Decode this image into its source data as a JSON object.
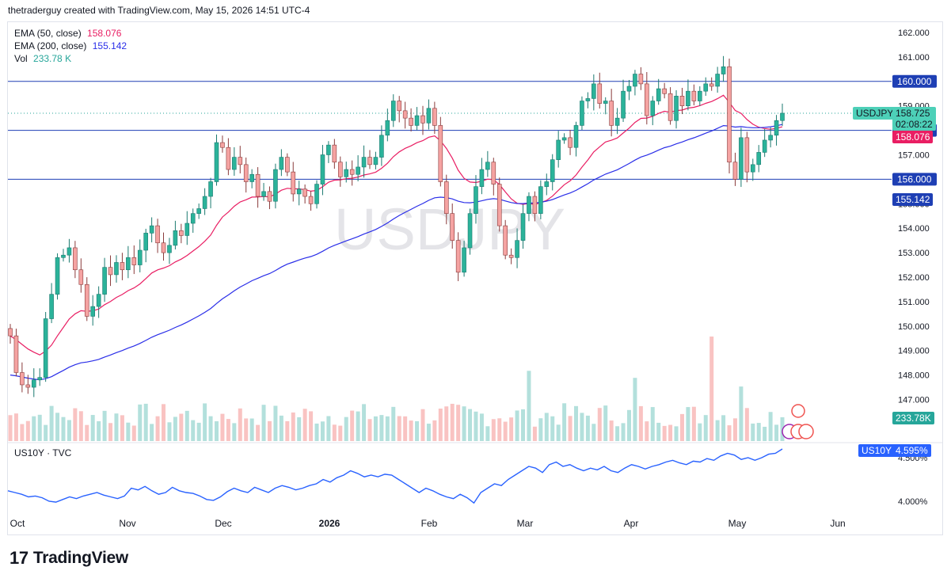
{
  "header": {
    "attribution": "thetraderguy created with TradingView.com, May 15, 2026 14:51 UTC-4"
  },
  "watermark": "USDJPY",
  "legend": {
    "ema50_label": "EMA (50, close)",
    "ema50_value": "158.076",
    "ema200_label": "EMA (200, close)",
    "ema200_value": "155.142",
    "vol_label": "Vol",
    "vol_value": "233.78 K"
  },
  "lower_legend": {
    "label": "US10Y · TVC"
  },
  "price_tags": {
    "symbol": "USDJPY",
    "last": "158.725",
    "countdown": "02:08:22",
    "ema50": "158.076",
    "ema200": "155.142",
    "vol": "233.78K",
    "us10y_symbol": "US10Y",
    "us10y_last": "4.595%"
  },
  "brand": {
    "name": "TradingView"
  },
  "colors": {
    "up": "#26a69a",
    "down": "#ef5350",
    "ema50": "#e91e63",
    "ema200": "#2a2ee8",
    "levels": "#1e3fb4",
    "us10y": "#2962ff"
  },
  "chart_data": [
    {
      "type": "candlestick",
      "symbol": "USDJPY",
      "y_range": [
        146.0,
        162.5
      ],
      "y_ticks": [
        "162.000",
        "161.000",
        "160.000",
        "159.000",
        "158.000",
        "157.000",
        "156.000",
        "155.000",
        "154.000",
        "153.000",
        "152.000",
        "151.000",
        "150.000",
        "149.000",
        "148.000",
        "147.000"
      ],
      "x_labels": [
        "Oct",
        "Nov",
        "Dec",
        "2026",
        "Feb",
        "Mar",
        "Apr",
        "May",
        "Jun"
      ],
      "horizontal_levels": [
        160.0,
        158.0,
        156.0
      ],
      "ohlc_closes": [
        149.6,
        148.1,
        147.6,
        147.5,
        147.8,
        147.9,
        150.3,
        151.3,
        152.8,
        152.9,
        153.2,
        152.3,
        151.7,
        150.4,
        150.8,
        151.3,
        152.4,
        152.1,
        152.6,
        152.3,
        152.8,
        152.5,
        153.1,
        153.8,
        154.1,
        153.4,
        153.0,
        153.3,
        153.9,
        153.7,
        154.2,
        154.6,
        154.8,
        155.3,
        155.9,
        157.5,
        157.3,
        156.4,
        156.9,
        156.6,
        155.9,
        156.2,
        155.3,
        155.5,
        155.1,
        156.4,
        156.9,
        156.3,
        155.4,
        155.6,
        155.3,
        155.0,
        155.8,
        157.0,
        157.4,
        156.7,
        156.1,
        156.4,
        156.2,
        156.5,
        156.9,
        156.6,
        156.9,
        157.8,
        158.4,
        159.2,
        158.8,
        158.5,
        158.2,
        158.6,
        158.3,
        158.9,
        158.2,
        155.9,
        154.6,
        153.5,
        152.2,
        153.2,
        154.6,
        155.7,
        156.4,
        156.7,
        155.8,
        154.1,
        152.9,
        152.8,
        153.5,
        154.6,
        155.3,
        154.6,
        155.7,
        155.9,
        156.8,
        157.6,
        157.7,
        157.3,
        158.2,
        159.2,
        159.3,
        159.9,
        159.1,
        159.2,
        158.2,
        158.5,
        159.6,
        159.8,
        160.3,
        159.9,
        158.6,
        159.2,
        159.7,
        159.5,
        158.4,
        159.4,
        159.0,
        159.6,
        159.2,
        159.6,
        159.9,
        159.8,
        160.3,
        160.6,
        156.7,
        156.0,
        157.7,
        156.3,
        156.6,
        157.1,
        157.6,
        157.8,
        158.4,
        158.7
      ],
      "series": [
        {
          "name": "EMA (50, close)",
          "last": 158.076
        },
        {
          "name": "EMA (200, close)",
          "last": 155.142
        },
        {
          "name": "Vol",
          "last": "233.78 K"
        }
      ]
    },
    {
      "type": "line",
      "symbol": "US10Y",
      "y_ticks": [
        "4.500%",
        "4.000%"
      ],
      "last": "4.595%",
      "values": [
        4.12,
        4.1,
        4.08,
        4.05,
        4.06,
        4.04,
        4.0,
        3.99,
        4.02,
        4.05,
        4.03,
        4.06,
        4.08,
        4.1,
        4.07,
        4.05,
        4.03,
        4.06,
        4.15,
        4.13,
        4.17,
        4.12,
        4.08,
        4.1,
        4.16,
        4.12,
        4.1,
        4.09,
        4.06,
        4.02,
        4.01,
        4.05,
        4.11,
        4.15,
        4.12,
        4.1,
        4.16,
        4.13,
        4.1,
        4.15,
        4.18,
        4.16,
        4.13,
        4.15,
        4.18,
        4.2,
        4.25,
        4.22,
        4.27,
        4.3,
        4.35,
        4.32,
        4.28,
        4.3,
        4.28,
        4.31,
        4.3,
        4.25,
        4.2,
        4.15,
        4.1,
        4.15,
        4.12,
        4.08,
        4.05,
        4.03,
        4.08,
        4.04,
        3.98,
        4.1,
        4.15,
        4.2,
        4.18,
        4.25,
        4.3,
        4.35,
        4.4,
        4.38,
        4.33,
        4.42,
        4.45,
        4.4,
        4.42,
        4.38,
        4.35,
        4.38,
        4.36,
        4.4,
        4.35,
        4.33,
        4.38,
        4.42,
        4.4,
        4.37,
        4.4,
        4.42,
        4.45,
        4.47,
        4.44,
        4.42,
        4.46,
        4.45,
        4.49,
        4.47,
        4.52,
        4.55,
        4.53,
        4.48,
        4.5,
        4.47,
        4.5,
        4.54,
        4.55,
        4.6
      ]
    }
  ]
}
